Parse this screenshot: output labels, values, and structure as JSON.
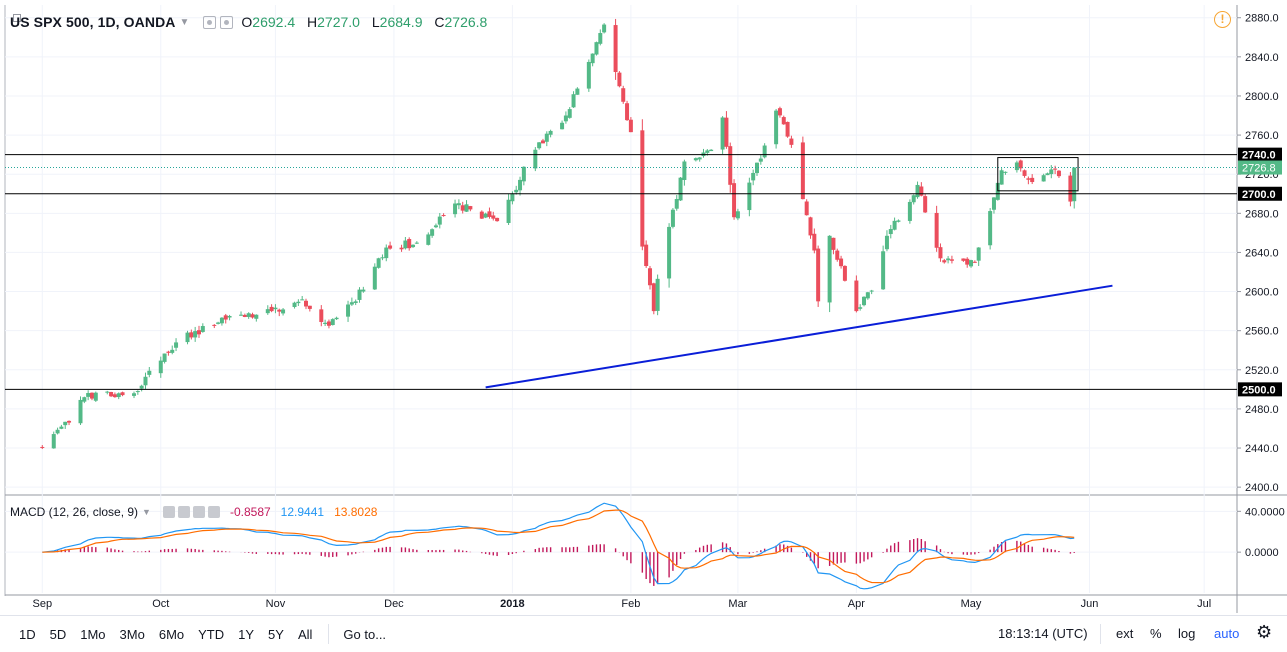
{
  "legend": {
    "symbol": "US SPX 500, 1D, OANDA",
    "o_label": "O",
    "o_value": "2692.4",
    "h_label": "H",
    "h_value": "2727.0",
    "l_label": "L",
    "l_value": "2684.9",
    "c_label": "C",
    "c_value": "2726.8"
  },
  "macd_legend": {
    "name": "MACD (12, 26, close, 9)",
    "histogram": "-0.8587",
    "macd": "12.9441",
    "signal": "13.8028"
  },
  "alert_symbol": "!",
  "colors": {
    "up": "#53b987",
    "down": "#eb4d5c",
    "macd_line": "#2196f3",
    "signal_line": "#ff6d00",
    "histogram": "#c2185b",
    "trendline": "#0a1ed8",
    "price_dotted": "#26a69a",
    "price_label_bg": "#53b987"
  },
  "chart_data": [
    {
      "type": "candlestick",
      "title": "US SPX 500, 1D, OANDA",
      "y_axis_ticks": [
        2400,
        2440,
        2480,
        2520,
        2560,
        2600,
        2640,
        2680,
        2720,
        2760,
        2800,
        2840,
        2880
      ],
      "y_axis_labels": [
        "2400.0",
        "2440.0",
        "2480.0",
        "2520.0",
        "2560.0",
        "2600.0",
        "2640.0",
        "2680.0",
        "2720.0",
        "2760.0",
        "2800.0",
        "2840.0",
        "2880.0"
      ],
      "ylim": [
        2393,
        2893
      ],
      "x_axis_labels": [
        "Sep",
        "Oct",
        "Nov",
        "Dec",
        "2018",
        "Feb",
        "Mar",
        "Apr",
        "May",
        "Jun",
        "Jul"
      ],
      "x_axis_label_days": [
        0,
        31,
        61,
        92,
        123,
        154,
        182,
        213,
        243,
        274,
        304
      ],
      "date_range": [
        "2017-08-31",
        "2018-05-29"
      ],
      "close_anchors": [
        {
          "date": "2017-08-31",
          "close": 2442
        },
        {
          "date": "2017-09-08",
          "close": 2466
        },
        {
          "date": "2017-09-12",
          "close": 2492
        },
        {
          "date": "2017-09-25",
          "close": 2496
        },
        {
          "date": "2017-09-29",
          "close": 2519
        },
        {
          "date": "2017-10-06",
          "close": 2548
        },
        {
          "date": "2017-10-20",
          "close": 2575
        },
        {
          "date": "2017-10-31",
          "close": 2580
        },
        {
          "date": "2017-11-08",
          "close": 2592
        },
        {
          "date": "2017-11-15",
          "close": 2565
        },
        {
          "date": "2017-11-24",
          "close": 2602
        },
        {
          "date": "2017-11-30",
          "close": 2645
        },
        {
          "date": "2017-12-08",
          "close": 2650
        },
        {
          "date": "2017-12-18",
          "close": 2690
        },
        {
          "date": "2017-12-29",
          "close": 2672
        },
        {
          "date": "2018-01-08",
          "close": 2745
        },
        {
          "date": "2018-01-16",
          "close": 2780
        },
        {
          "date": "2018-01-26",
          "close": 2873
        },
        {
          "date": "2018-02-02",
          "close": 2763
        },
        {
          "date": "2018-02-05",
          "close": 2646
        },
        {
          "date": "2018-02-08",
          "close": 2580
        },
        {
          "date": "2018-02-09",
          "close": 2613
        },
        {
          "date": "2018-02-16",
          "close": 2733
        },
        {
          "date": "2018-02-23",
          "close": 2745
        },
        {
          "date": "2018-02-26",
          "close": 2778
        },
        {
          "date": "2018-03-01",
          "close": 2676
        },
        {
          "date": "2018-03-08",
          "close": 2736
        },
        {
          "date": "2018-03-12",
          "close": 2785
        },
        {
          "date": "2018-03-16",
          "close": 2750
        },
        {
          "date": "2018-03-22",
          "close": 2642
        },
        {
          "date": "2018-03-23",
          "close": 2590
        },
        {
          "date": "2018-03-26",
          "close": 2657
        },
        {
          "date": "2018-04-02",
          "close": 2580
        },
        {
          "date": "2018-04-06",
          "close": 2601
        },
        {
          "date": "2018-04-10",
          "close": 2657
        },
        {
          "date": "2018-04-18",
          "close": 2709
        },
        {
          "date": "2018-04-24",
          "close": 2634
        },
        {
          "date": "2018-05-03",
          "close": 2630
        },
        {
          "date": "2018-05-10",
          "close": 2724
        },
        {
          "date": "2018-05-14",
          "close": 2732
        },
        {
          "date": "2018-05-18",
          "close": 2712
        },
        {
          "date": "2018-05-24",
          "close": 2725
        },
        {
          "date": "2018-05-25",
          "close": 2718
        },
        {
          "date": "2018-05-28",
          "close": 2692
        },
        {
          "date": "2018-05-29",
          "close": 2727
        }
      ],
      "horizontal_levels": [
        {
          "value": 2740,
          "label": "2740.0"
        },
        {
          "value": 2700,
          "label": "2700.0"
        },
        {
          "value": 2500,
          "label": "2500.0"
        }
      ],
      "current_price": {
        "value": 2726.8,
        "label": "2726.8"
      },
      "trendline": {
        "from": {
          "date": "2017-12-26",
          "price": 2502
        },
        "to": {
          "date": "2018-06-08",
          "price": 2606
        }
      },
      "range_box": {
        "from_date": "2018-05-09",
        "to_date": "2018-05-30",
        "top": 2737,
        "bottom": 2703
      }
    },
    {
      "type": "line",
      "title": "MACD (12, 26, close, 9)",
      "y_axis_ticks": [
        0,
        40
      ],
      "y_axis_labels": [
        "0.0000",
        "40.0000"
      ],
      "ylim": [
        -40,
        55
      ],
      "series": [
        {
          "name": "MACD",
          "key": "macd_line"
        },
        {
          "name": "Signal",
          "key": "signal_line"
        },
        {
          "name": "Histogram",
          "key": "histogram"
        }
      ]
    }
  ],
  "toolbar": {
    "timeframes": [
      "1D",
      "5D",
      "1Mo",
      "3Mo",
      "6Mo",
      "YTD",
      "1Y",
      "5Y",
      "All"
    ],
    "goto": "Go to...",
    "clock": "18:13:14 (UTC)",
    "ext": "ext",
    "percent": "%",
    "log": "log",
    "auto": "auto",
    "settings_icon": "gear-icon"
  }
}
